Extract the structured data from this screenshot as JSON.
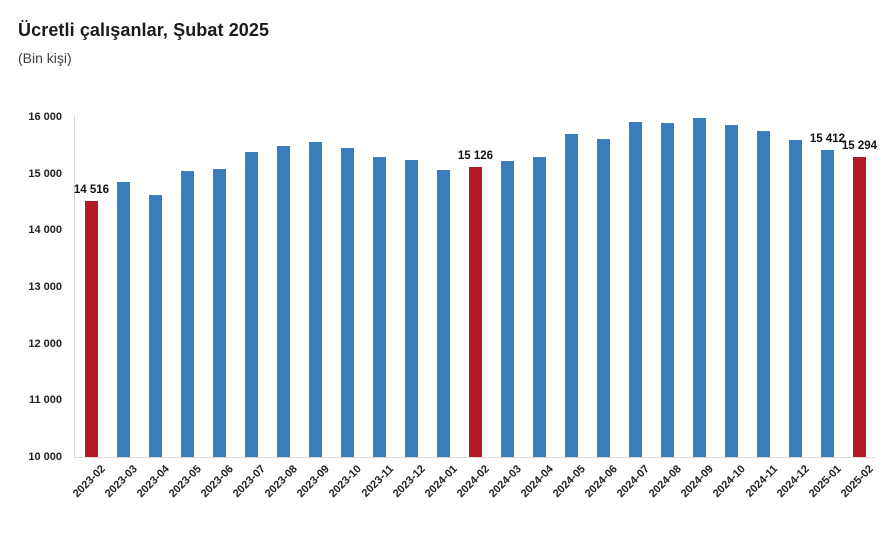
{
  "title": "Ücretli çalışanlar, Şubat 2025",
  "subtitle": "(Bin kişi)",
  "colors": {
    "bar_default": "#3a7ebc",
    "bar_highlight": "#b01b25",
    "axis_line": "#d9d9d9",
    "title_text": "#1a1a1f",
    "axis_text": "#222222",
    "value_label_text": "#111111"
  },
  "chart_data": {
    "type": "bar",
    "title": "Ücretli çalışanlar, Şubat 2025",
    "subtitle": "(Bin kişi)",
    "xlabel": "",
    "ylabel": "Bin kişi",
    "ylim": [
      10000,
      16000
    ],
    "grid": false,
    "legend": false,
    "categories": [
      "2023-02",
      "2023-03",
      "2023-04",
      "2023-05",
      "2023-06",
      "2023-07",
      "2023-08",
      "2023-09",
      "2023-10",
      "2023-11",
      "2023-12",
      "2024-01",
      "2024-02",
      "2024-03",
      "2024-04",
      "2024-05",
      "2024-06",
      "2024-07",
      "2024-08",
      "2024-09",
      "2024-10",
      "2024-11",
      "2024-12",
      "2025-01",
      "2025-02"
    ],
    "values": [
      14516,
      14850,
      14620,
      15040,
      15090,
      15380,
      15480,
      15560,
      15450,
      15300,
      15250,
      15070,
      15126,
      15230,
      15300,
      15700,
      15610,
      15910,
      15900,
      15980,
      15860,
      15750,
      15590,
      15412,
      15294
    ],
    "highlight_indices": [
      0,
      12,
      24
    ],
    "value_labels": [
      {
        "index": 0,
        "text": "14 516"
      },
      {
        "index": 12,
        "text": "15 126"
      },
      {
        "index": 23,
        "text": "15 412"
      },
      {
        "index": 24,
        "text": "15 294"
      }
    ],
    "yticks": [
      {
        "value": 16000,
        "label": "16 000"
      },
      {
        "value": 15000,
        "label": "15 000"
      },
      {
        "value": 14000,
        "label": "14 000"
      },
      {
        "value": 13000,
        "label": "13 000"
      },
      {
        "value": 12000,
        "label": "12 000"
      },
      {
        "value": 11000,
        "label": "11 000"
      },
      {
        "value": 10000,
        "label": "10 000"
      }
    ]
  }
}
